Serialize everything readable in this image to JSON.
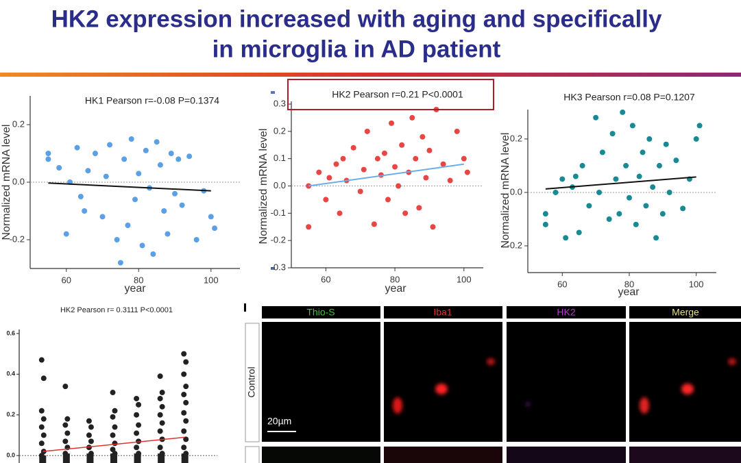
{
  "slide_title": [
    "HK2 expression increased with aging and specifically",
    "in microglia in AD patient"
  ],
  "chart_data": [
    {
      "type": "scatter",
      "title": "HK1 Pearson r=-0.08 P=0.1374",
      "x_label": "year",
      "y_label": "Normalized mRNA level",
      "color": "#5b9fe6",
      "line_color": "#111111",
      "x": [
        55,
        55,
        58,
        60,
        61,
        63,
        64,
        65,
        66,
        68,
        70,
        71,
        72,
        74,
        75,
        76,
        77,
        78,
        79,
        80,
        81,
        82,
        83,
        84,
        85,
        86,
        87,
        88,
        89,
        90,
        91,
        92,
        94,
        96,
        98,
        100,
        101
      ],
      "values": [
        0.1,
        0.08,
        0.05,
        -0.18,
        0.0,
        0.12,
        -0.05,
        -0.1,
        0.04,
        0.1,
        -0.12,
        0.02,
        0.13,
        -0.2,
        -0.28,
        0.08,
        -0.15,
        0.15,
        -0.06,
        0.03,
        -0.22,
        0.11,
        -0.02,
        -0.25,
        0.14,
        0.06,
        -0.1,
        -0.18,
        0.1,
        -0.04,
        0.08,
        -0.08,
        0.09,
        -0.2,
        -0.03,
        -0.12,
        -0.16
      ],
      "fit": {
        "x": [
          55,
          100
        ],
        "values": [
          -0.003,
          -0.03
        ]
      },
      "xlim": [
        50,
        108
      ],
      "ylim": [
        -0.3,
        0.3
      ],
      "xticks": [
        60,
        80,
        100
      ],
      "yticks": [
        -0.2,
        {
          "value": 0,
          "label": "0.0"
        },
        0.2
      ],
      "zero_line": true
    },
    {
      "type": "scatter",
      "title": "HK2 Pearson r=0.21  P<0.0001",
      "x_label": "year",
      "y_label": "Normalized mRNA level",
      "color": "#e84545",
      "line_color": "#6aaee8",
      "highlight": true,
      "x": [
        55,
        55,
        58,
        60,
        61,
        63,
        64,
        65,
        66,
        68,
        70,
        71,
        72,
        74,
        75,
        76,
        77,
        78,
        79,
        80,
        81,
        82,
        83,
        84,
        85,
        86,
        87,
        88,
        89,
        90,
        91,
        92,
        94,
        96,
        98,
        100,
        101
      ],
      "values": [
        -0.15,
        0.0,
        0.05,
        -0.05,
        0.03,
        0.08,
        -0.1,
        0.1,
        0.02,
        0.14,
        -0.02,
        0.06,
        0.2,
        -0.14,
        0.1,
        0.04,
        0.12,
        -0.05,
        0.23,
        0.07,
        0.0,
        0.15,
        -0.1,
        0.05,
        0.25,
        0.1,
        -0.08,
        0.18,
        0.03,
        0.13,
        -0.15,
        0.28,
        0.08,
        0.02,
        0.2,
        0.1,
        0.05
      ],
      "fit": {
        "x": [
          55,
          100
        ],
        "values": [
          0.0,
          0.08
        ]
      },
      "xlim": [
        50,
        105.6
      ],
      "ylim": [
        -0.3,
        0.31
      ],
      "xticks": [
        60,
        80,
        100
      ],
      "yticks": [
        -0.3,
        -0.2,
        -0.1,
        {
          "value": 0,
          "label": "0.0"
        },
        0.1,
        0.2,
        0.3
      ],
      "zero_line": true
    },
    {
      "type": "scatter",
      "title": "HK3 Pearson r=0.08  P=0.1207",
      "x_label": "year",
      "y_label": "Normalized mRNA level",
      "color": "#178a94",
      "line_color": "#111111",
      "x": [
        55,
        55,
        58,
        60,
        61,
        63,
        64,
        65,
        66,
        68,
        70,
        71,
        72,
        74,
        75,
        76,
        77,
        78,
        79,
        80,
        81,
        82,
        83,
        84,
        85,
        86,
        87,
        88,
        89,
        90,
        91,
        92,
        94,
        96,
        98,
        100,
        101
      ],
      "values": [
        -0.08,
        -0.12,
        0.0,
        0.05,
        -0.17,
        0.02,
        0.06,
        -0.15,
        0.1,
        -0.05,
        0.28,
        0.0,
        0.15,
        -0.1,
        0.22,
        0.05,
        -0.08,
        0.3,
        0.1,
        -0.02,
        0.25,
        -0.12,
        0.06,
        0.15,
        -0.05,
        0.2,
        0.02,
        -0.17,
        0.1,
        -0.08,
        0.18,
        0.0,
        0.12,
        -0.06,
        0.05,
        0.2,
        0.25
      ],
      "fit": {
        "x": [
          55,
          100
        ],
        "values": [
          0.013,
          0.058
        ]
      },
      "xlim": [
        49.7,
        106
      ],
      "ylim": [
        -0.3,
        0.31
      ],
      "xticks": [
        60,
        80,
        100
      ],
      "yticks": [
        -0.2,
        {
          "value": 0,
          "label": "0.0"
        },
        0.2
      ],
      "zero_line": true
    },
    {
      "type": "strip",
      "title": "HK2 Pearson r= 0.3111    P<0.0001",
      "color": "#222222",
      "line_color": "#e03030",
      "categories": [
        null,
        null,
        null,
        null,
        null,
        null,
        null
      ],
      "values": [
        [
          0.47,
          0.38,
          0.22,
          0.18,
          0.14,
          0.1,
          0.06,
          0.02,
          0.0
        ],
        [
          0.34,
          0.18,
          0.15,
          0.11,
          0.07,
          0.04,
          0.01
        ],
        [
          0.17,
          0.14,
          0.1,
          0.07,
          0.04,
          0.01
        ],
        [
          0.31,
          0.22,
          0.19,
          0.14,
          0.1,
          0.06,
          0.03,
          0.01
        ],
        [
          0.28,
          0.25,
          0.2,
          0.15,
          0.11,
          0.07,
          0.04,
          0.01
        ],
        [
          0.39,
          0.31,
          0.28,
          0.24,
          0.2,
          0.16,
          0.12,
          0.08,
          0.04,
          0.01
        ],
        [
          0.5,
          0.46,
          0.4,
          0.34,
          0.3,
          0.26,
          0.21,
          0.17,
          0.12,
          0.08,
          0.04,
          0.01
        ]
      ],
      "fit": {
        "values": [
          0.02,
          0.09
        ]
      },
      "ylim": [
        -0.04,
        0.62
      ],
      "yticks": [
        {
          "value": 0,
          "label": "0.0"
        },
        0.2,
        0.4,
        0.6
      ],
      "zero_line": true
    }
  ],
  "image_panel": {
    "columns": [
      "Thio-S",
      "Iba1",
      "HK2",
      "Merge"
    ],
    "rows": [
      "Control"
    ],
    "scale_bar": "20µm"
  }
}
